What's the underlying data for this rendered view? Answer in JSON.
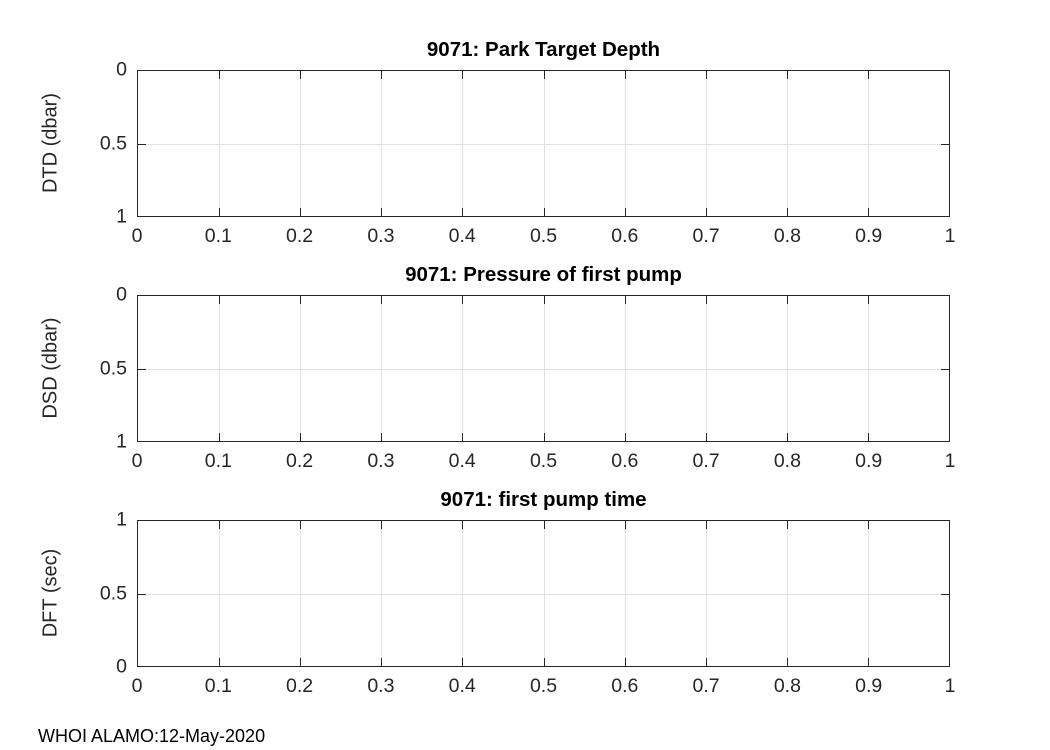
{
  "figure": {
    "footer_text": "WHOI ALAMO:12-May-2020",
    "background_color": "#FFFFFF",
    "axis_color": "#262626",
    "grid_color": "#E2E2E2",
    "title_color": "#000000"
  },
  "chart_data": [
    {
      "type": "line",
      "title": "9071: Park Target Depth",
      "ylabel": "DTD (dbar)",
      "xlabel": "",
      "xlim": [
        0,
        1
      ],
      "ylim": [
        0,
        1
      ],
      "y_axis_direction": "reversed",
      "grid": true,
      "xticks": [
        "0",
        "0.1",
        "0.2",
        "0.3",
        "0.4",
        "0.5",
        "0.6",
        "0.7",
        "0.8",
        "0.9",
        "1"
      ],
      "yticks_top_to_bottom": [
        "0",
        "0.5",
        "1"
      ],
      "series": []
    },
    {
      "type": "line",
      "title": "9071: Pressure of first pump",
      "ylabel": "DSD (dbar)",
      "xlabel": "",
      "xlim": [
        0,
        1
      ],
      "ylim": [
        0,
        1
      ],
      "y_axis_direction": "reversed",
      "grid": true,
      "xticks": [
        "0",
        "0.1",
        "0.2",
        "0.3",
        "0.4",
        "0.5",
        "0.6",
        "0.7",
        "0.8",
        "0.9",
        "1"
      ],
      "yticks_top_to_bottom": [
        "0",
        "0.5",
        "1"
      ],
      "series": []
    },
    {
      "type": "line",
      "title": "9071: first pump time",
      "ylabel": "DFT (sec)",
      "xlabel": "",
      "xlim": [
        0,
        1
      ],
      "ylim": [
        0,
        1
      ],
      "y_axis_direction": "normal",
      "grid": true,
      "xticks": [
        "0",
        "0.1",
        "0.2",
        "0.3",
        "0.4",
        "0.5",
        "0.6",
        "0.7",
        "0.8",
        "0.9",
        "1"
      ],
      "yticks_top_to_bottom": [
        "1",
        "0.5",
        "0"
      ],
      "series": []
    }
  ]
}
